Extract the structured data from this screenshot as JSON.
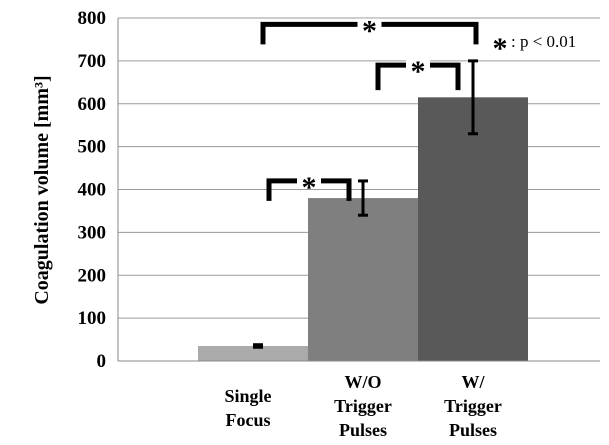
{
  "chart_data": {
    "type": "bar",
    "ylabel": "Coagulation volume [mm³]",
    "ylim": [
      0,
      800
    ],
    "yticks": [
      0,
      100,
      200,
      300,
      400,
      500,
      600,
      700,
      800
    ],
    "grid": true,
    "categories": [
      [
        "Single",
        "Focus"
      ],
      [
        "W/O",
        "Trigger",
        "Pulses"
      ],
      [
        "W/",
        "Trigger",
        "Pulses"
      ]
    ],
    "values": [
      35,
      380,
      615
    ],
    "error": [
      3,
      40,
      85
    ],
    "colors": [
      "#aaaaaa",
      "#7f7f7f",
      "#595959"
    ],
    "significance": [
      {
        "between": [
          0,
          1
        ],
        "level": 420,
        "label": "*"
      },
      {
        "between": [
          1,
          2
        ],
        "level": 690,
        "label": "*"
      },
      {
        "between": [
          0,
          2
        ],
        "level": 785,
        "label": "*"
      }
    ],
    "annotation": {
      "star": "*",
      "text": ": p < 0.01"
    }
  }
}
